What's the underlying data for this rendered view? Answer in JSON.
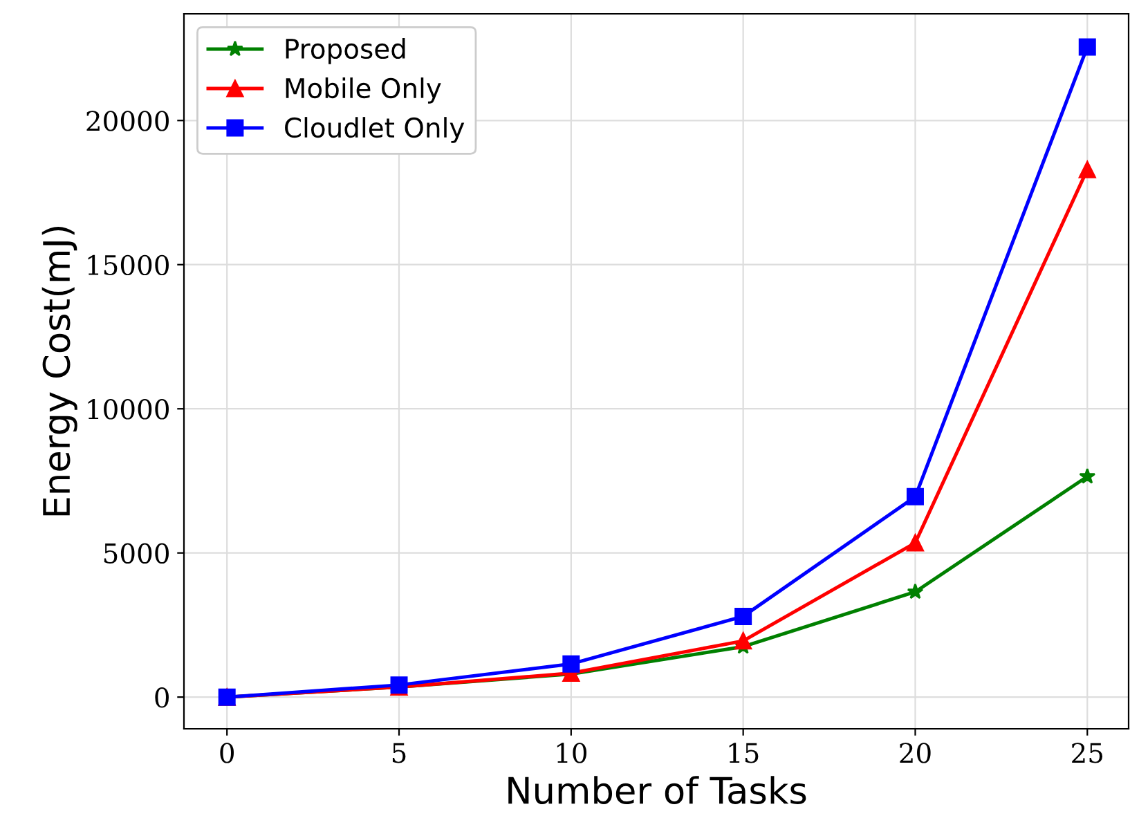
{
  "chart_data": {
    "type": "line",
    "xlabel": "Number of Tasks",
    "ylabel": "Energy Cost(mJ)",
    "x": [
      0,
      5,
      10,
      15,
      20,
      25
    ],
    "series": [
      {
        "name": "Proposed",
        "color": "#008000",
        "marker": "star",
        "values": [
          0,
          350,
          800,
          1750,
          3650,
          7650
        ]
      },
      {
        "name": "Mobile Only",
        "color": "#ff0000",
        "marker": "triangle",
        "values": [
          0,
          350,
          830,
          1950,
          5350,
          18300
        ]
      },
      {
        "name": "Cloudlet Only",
        "color": "#0000ff",
        "marker": "square",
        "values": [
          0,
          420,
          1150,
          2800,
          6950,
          22550
        ]
      }
    ],
    "xlim": [
      -1.25,
      26.2
    ],
    "ylim": [
      -1100,
      23700
    ],
    "xticks": [
      0,
      5,
      10,
      15,
      20,
      25
    ],
    "yticks": [
      0,
      5000,
      10000,
      15000,
      20000
    ],
    "grid": true,
    "legend": "top left",
    "line_style": "solid"
  }
}
